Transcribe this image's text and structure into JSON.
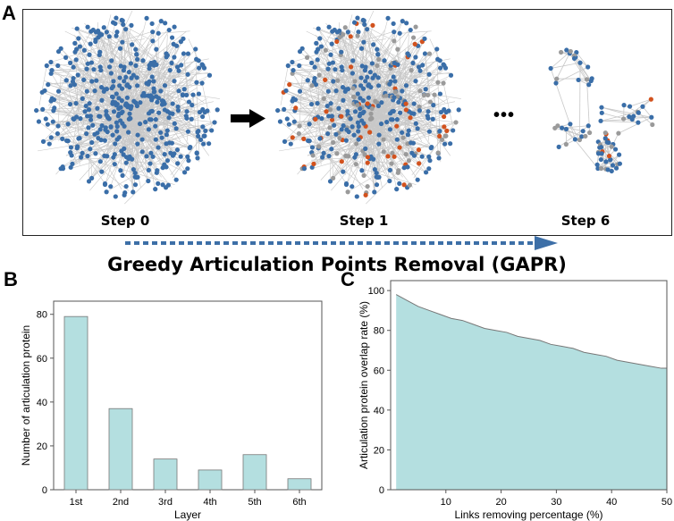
{
  "panels": {
    "a": {
      "letter": "A"
    },
    "b": {
      "letter": "B"
    },
    "c": {
      "letter": "C"
    }
  },
  "network_steps": {
    "step0": "Step 0",
    "step1": "Step 1",
    "step6": "Step 6",
    "ellipsis": "•••"
  },
  "colors": {
    "node_blue": "#3a6ea8",
    "node_orange": "#d2521e",
    "node_gray": "#9a9a9a",
    "edge": "#c8c8c8",
    "bar_fill": "#b4dfe0",
    "area_fill": "#b4dfe0",
    "arrow_blue": "#3d6fa7"
  },
  "gapr_title": "Greedy Articulation Points Removal (GAPR)",
  "chart_data": [
    {
      "type": "bar",
      "title": "",
      "categories": [
        "1st",
        "2nd",
        "3rd",
        "4th",
        "5th",
        "6th"
      ],
      "values": [
        79,
        37,
        14,
        9,
        16,
        5
      ],
      "xlabel": "Layer",
      "ylabel": "Number of articulation protein",
      "ylim": [
        0,
        86
      ],
      "yticks": [
        0,
        20,
        40,
        60,
        80
      ],
      "grid": false
    },
    {
      "type": "area",
      "title": "",
      "x": [
        1,
        3,
        5,
        7,
        9,
        11,
        13,
        15,
        17,
        19,
        21,
        23,
        25,
        27,
        29,
        31,
        33,
        35,
        37,
        39,
        41,
        43,
        45,
        47,
        49,
        50
      ],
      "y": [
        98,
        95,
        92,
        90,
        88,
        86,
        85,
        83,
        81,
        80,
        79,
        77,
        76,
        75,
        73,
        72,
        71,
        69,
        68,
        67,
        65,
        64,
        63,
        62,
        61,
        61
      ],
      "xlabel": "Links removing percentage (%)",
      "ylabel": "Articulation protein overlap rate (%)",
      "xlim": [
        0,
        50
      ],
      "ylim": [
        0,
        105
      ],
      "xticks": [
        10,
        20,
        30,
        40,
        50
      ],
      "yticks": [
        0,
        20,
        40,
        60,
        80,
        100
      ],
      "grid": false
    }
  ]
}
